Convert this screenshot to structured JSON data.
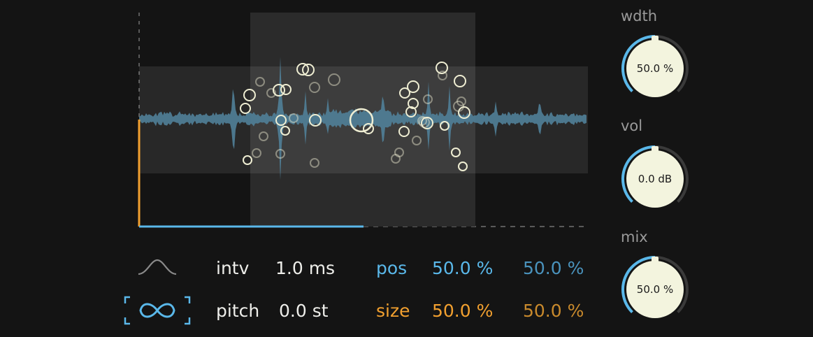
{
  "colors": {
    "background": "#141414",
    "accent_blue": "#5ab8ea",
    "accent_steel": "#4a93bd",
    "accent_orange": "#f2a02f",
    "accent_dark_orange": "#c98a2c",
    "waveform": "#4f7e96",
    "grain": "#efeed3",
    "knob_face": "#f3f4de"
  },
  "controls": {
    "envelope_icon": "bell-curve-icon",
    "loop_icon": "infinity-icon",
    "intv": {
      "label": "intv",
      "value": "1.0 ms"
    },
    "pitch": {
      "label": "pitch",
      "value": "0.0 st"
    },
    "pos": {
      "label": "pos",
      "value": "50.0 %",
      "spread": "50.0 %"
    },
    "size": {
      "label": "size",
      "value": "50.0 %",
      "spread": "50.0 %"
    }
  },
  "playhead": {
    "progress": 0.5
  },
  "knobs": [
    {
      "label": "wdth",
      "value": "50.0 %",
      "fraction": 0.5
    },
    {
      "label": "vol",
      "value": "0.0 dB",
      "fraction": 0.5
    },
    {
      "label": "mix",
      "value": "50.0 %",
      "fraction": 0.5
    }
  ]
}
